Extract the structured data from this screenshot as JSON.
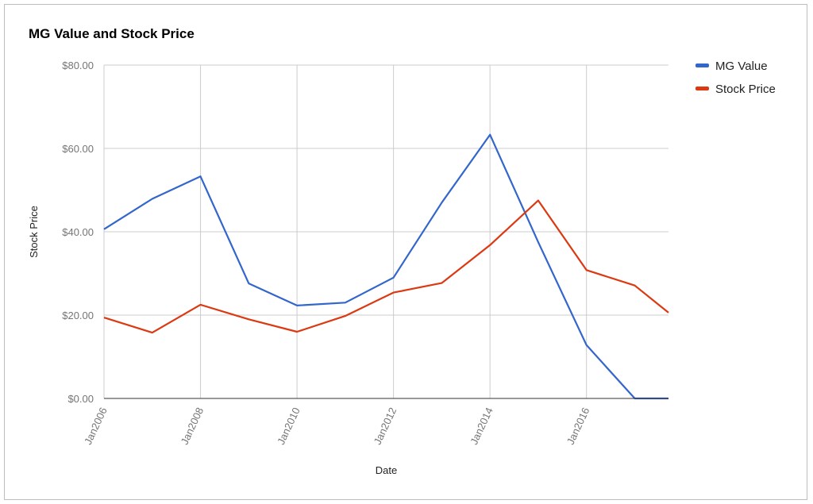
{
  "chart_data": {
    "type": "line",
    "title": "MG Value and Stock Price",
    "xlabel": "Date",
    "ylabel": "Stock Price",
    "ylim": [
      0,
      80
    ],
    "y_ticks": [
      0,
      20,
      40,
      60,
      80
    ],
    "y_tick_labels": [
      "$0.00",
      "$20.00",
      "$40.00",
      "$60.00",
      "$80.00"
    ],
    "x_range": [
      2006,
      2017.7
    ],
    "x_ticks": [
      2006,
      2008,
      2010,
      2012,
      2014,
      2016
    ],
    "x_tick_labels": [
      "Jan2006",
      "Jan2008",
      "Jan2010",
      "Jan2012",
      "Jan2014",
      "Jan2016"
    ],
    "grid": true,
    "legend_position": "right",
    "series": [
      {
        "name": "MG Value",
        "color": "#3366cc",
        "x": [
          2006,
          2007,
          2008,
          2009,
          2010,
          2011,
          2012,
          2013,
          2014,
          2015,
          2016,
          2017,
          2017.7
        ],
        "values": [
          40.6,
          47.9,
          53.3,
          27.6,
          22.3,
          23.0,
          29.0,
          47.0,
          63.3,
          37.5,
          12.8,
          0.0,
          0.0
        ]
      },
      {
        "name": "Stock Price",
        "color": "#dc3912",
        "x": [
          2006,
          2007,
          2008,
          2009,
          2010,
          2011,
          2012,
          2013,
          2014,
          2015,
          2016,
          2017,
          2017.7
        ],
        "values": [
          19.4,
          15.8,
          22.5,
          19.0,
          16.0,
          19.8,
          25.4,
          27.7,
          36.8,
          47.5,
          30.8,
          27.1,
          20.6
        ]
      }
    ]
  }
}
